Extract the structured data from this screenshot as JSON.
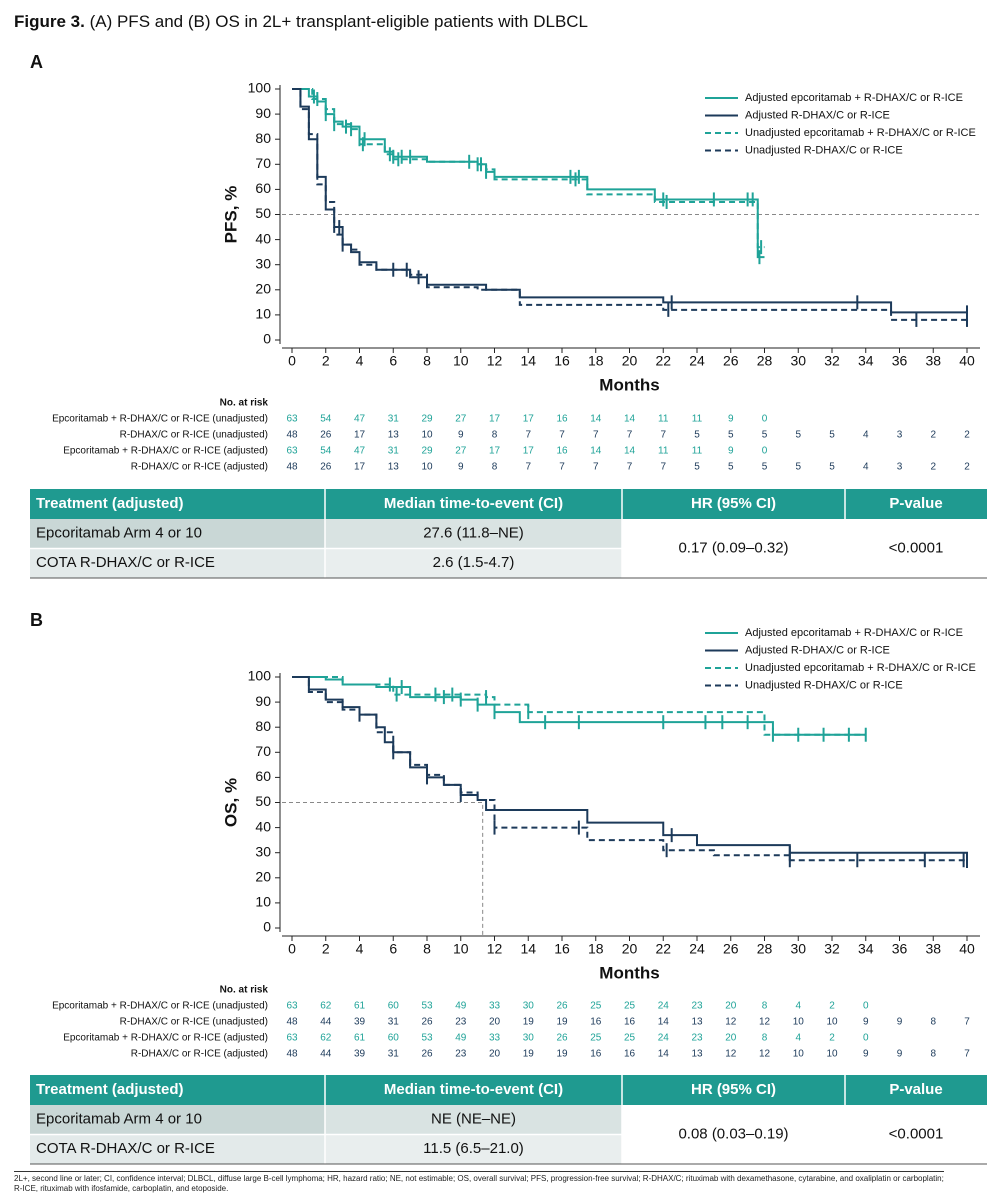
{
  "figure_title": {
    "label": "Figure 3.",
    "text": " (A) PFS and (B) OS in 2L+ transplant-eligible patients with DLBCL"
  },
  "chart_data": [
    {
      "panel": "A",
      "type": "line",
      "step": true,
      "y_label": "PFS, %",
      "x_label": "Months",
      "xlim": [
        0,
        40
      ],
      "ylim": [
        0,
        100
      ],
      "xticks": [
        0,
        2,
        4,
        6,
        8,
        10,
        12,
        14,
        16,
        18,
        20,
        22,
        24,
        26,
        28,
        30,
        32,
        34,
        36,
        38,
        40
      ],
      "yticks": [
        0,
        10,
        20,
        30,
        40,
        50,
        60,
        70,
        80,
        90,
        100
      ],
      "reference_line": 50,
      "series": [
        {
          "name": "Adjusted epcoritamab + R-DHAX/C or R-ICE",
          "color": "#1fa398",
          "dash": false,
          "x": [
            0,
            1,
            1.5,
            2,
            2.5,
            3,
            4,
            5.5,
            6,
            8,
            11,
            11.5,
            12,
            17.5,
            21.5,
            27.6,
            28
          ],
          "values": [
            100,
            97,
            95,
            90,
            87,
            85,
            80,
            75,
            73,
            71,
            70,
            67,
            65,
            60,
            56,
            33,
            33
          ],
          "censored": [
            1.3,
            2,
            3.2,
            4,
            4.3,
            6,
            6.5,
            7,
            10.5,
            11,
            11.5,
            16.5,
            17,
            22,
            25,
            27,
            27.3,
            27.7
          ]
        },
        {
          "name": "Adjusted R-DHAX/C or R-ICE",
          "color": "#1c3a5a",
          "dash": false,
          "x": [
            0,
            0.5,
            1,
            1.5,
            2,
            2.5,
            3,
            3.5,
            4,
            5,
            6,
            7,
            8,
            11.5,
            13.5,
            22,
            35.5,
            40
          ],
          "values": [
            100,
            93,
            80,
            65,
            52,
            45,
            38,
            35,
            31,
            28,
            28,
            25,
            22,
            20,
            17,
            15,
            11,
            11
          ],
          "censored": [
            2.8,
            6,
            7.5,
            22.5,
            33.5,
            40
          ]
        },
        {
          "name": "Unadjusted epcoritamab + R-DHAX/C or R-ICE",
          "color": "#1fa398",
          "dash": true,
          "x": [
            0,
            1.2,
            2,
            2.5,
            3.5,
            4,
            5.5,
            6,
            8,
            11,
            11.5,
            12,
            17.5,
            21.5,
            27.6,
            28
          ],
          "values": [
            100,
            96,
            92,
            86,
            84,
            78,
            74,
            72,
            71,
            70,
            68,
            64,
            58,
            55,
            37,
            37
          ],
          "censored": [
            1.5,
            2.5,
            3.5,
            4.2,
            5.8,
            6.3,
            11.2,
            16.8,
            22.2,
            27.8
          ]
        },
        {
          "name": "Unadjusted R-DHAX/C or R-ICE",
          "color": "#1c3a5a",
          "dash": true,
          "x": [
            0,
            0.5,
            1,
            1.5,
            2,
            2.5,
            3,
            3.5,
            4,
            5,
            7,
            8,
            11,
            13.5,
            22,
            35.5,
            40
          ],
          "values": [
            100,
            92,
            82,
            62,
            55,
            42,
            38,
            36,
            30,
            28,
            26,
            21,
            20,
            14,
            12,
            8,
            8
          ],
          "censored": [
            3,
            6.8,
            22.3,
            37,
            40
          ]
        }
      ],
      "risk_table": {
        "title": "No. at risk",
        "rows": [
          {
            "label": "Epcoritamab + R-DHAX/C or R-ICE (unadjusted)",
            "color": "#1fa398",
            "counts": [
              63,
              54,
              47,
              31,
              29,
              27,
              17,
              17,
              16,
              14,
              14,
              11,
              11,
              9,
              0
            ]
          },
          {
            "label": "R-DHAX/C or R-ICE (unadjusted)",
            "color": "#1c3a5a",
            "counts": [
              48,
              26,
              17,
              13,
              10,
              9,
              8,
              7,
              7,
              7,
              7,
              7,
              5,
              5,
              5,
              5,
              5,
              4,
              3,
              2,
              2
            ]
          },
          {
            "label": "Epcoritamab + R-DHAX/C or R-ICE (adjusted)",
            "color": "#1fa398",
            "counts": [
              63,
              54,
              47,
              31,
              29,
              27,
              17,
              17,
              16,
              14,
              14,
              11,
              11,
              9,
              0
            ]
          },
          {
            "label": "R-DHAX/C or R-ICE (adjusted)",
            "color": "#1c3a5a",
            "counts": [
              48,
              26,
              17,
              13,
              10,
              9,
              8,
              7,
              7,
              7,
              7,
              7,
              5,
              5,
              5,
              5,
              5,
              4,
              3,
              2,
              2
            ]
          }
        ]
      },
      "summary_table": {
        "header": [
          "Treatment (adjusted)",
          "Median time-to-event (CI)",
          "HR (95% CI)",
          "P-value"
        ],
        "rows": [
          [
            "Epcoritamab Arm 4 or 10",
            "27.6 (11.8–NE)"
          ],
          [
            "COTA R-DHAX/C or R-ICE",
            "2.6 (1.5-4.7)"
          ]
        ],
        "hr": "0.17 (0.09–0.32)",
        "p_value": "<0.0001"
      }
    },
    {
      "panel": "B",
      "type": "line",
      "step": true,
      "y_label": "OS, %",
      "x_label": "Months",
      "xlim": [
        0,
        40
      ],
      "ylim": [
        0,
        100
      ],
      "xticks": [
        0,
        2,
        4,
        6,
        8,
        10,
        12,
        14,
        16,
        18,
        20,
        22,
        24,
        26,
        28,
        30,
        32,
        34,
        36,
        38,
        40
      ],
      "yticks": [
        0,
        10,
        20,
        30,
        40,
        50,
        60,
        70,
        80,
        90,
        100
      ],
      "median_line": {
        "x": 11.3,
        "y": 50
      },
      "series": [
        {
          "name": "Adjusted epcoritamab + R-DHAX/C or R-ICE",
          "color": "#1fa398",
          "dash": false,
          "x": [
            0,
            2,
            3,
            5,
            7,
            10,
            11,
            12,
            13.5,
            28,
            28.5,
            34
          ],
          "values": [
            100,
            99,
            97,
            96,
            92,
            91,
            89,
            86,
            82,
            82,
            77,
            77
          ],
          "censored": [
            6.5,
            9,
            10,
            11,
            12,
            15,
            17,
            22,
            24.5,
            25.5,
            27,
            28.5,
            30,
            31.5,
            33,
            34
          ]
        },
        {
          "name": "Adjusted R-DHAX/C or R-ICE",
          "color": "#1c3a5a",
          "dash": false,
          "x": [
            0,
            1,
            2,
            3,
            4,
            5,
            5.5,
            6,
            7,
            8,
            9,
            10,
            11,
            11.5,
            17.5,
            22,
            24,
            29.5,
            40
          ],
          "values": [
            100,
            95,
            91,
            88,
            85,
            80,
            74,
            70,
            64,
            60,
            57,
            53,
            51,
            47,
            42,
            37,
            33,
            30,
            27
          ],
          "censored": [
            4,
            6,
            8,
            10,
            22.5,
            29.5,
            40
          ]
        },
        {
          "name": "Unadjusted epcoritamab + R-DHAX/C or R-ICE",
          "color": "#1fa398",
          "dash": true,
          "x": [
            0,
            3,
            6,
            11.5,
            12,
            14,
            28,
            34
          ],
          "values": [
            100,
            97,
            93,
            92,
            89,
            86,
            77,
            77
          ],
          "censored": [
            5.8,
            6.2,
            8.5,
            9.5,
            11.5,
            14
          ]
        },
        {
          "name": "Unadjusted R-DHAX/C or R-ICE",
          "color": "#1c3a5a",
          "dash": true,
          "x": [
            0,
            1,
            2,
            3,
            4,
            5,
            6,
            7,
            8,
            9,
            10,
            11,
            12,
            17.5,
            22,
            25,
            29.5,
            40
          ],
          "values": [
            100,
            94,
            90,
            87,
            85,
            78,
            70,
            65,
            61,
            57,
            54,
            51,
            40,
            35,
            31,
            29,
            27,
            23
          ],
          "censored": [
            12,
            17,
            22.2,
            29.5,
            33.5,
            37.5,
            39.8
          ]
        }
      ],
      "risk_table": {
        "title": "No. at risk",
        "rows": [
          {
            "label": "Epcoritamab + R-DHAX/C or R-ICE (unadjusted)",
            "color": "#1fa398",
            "counts": [
              63,
              62,
              61,
              60,
              53,
              49,
              33,
              30,
              26,
              25,
              25,
              24,
              23,
              20,
              8,
              4,
              2,
              0
            ]
          },
          {
            "label": "R-DHAX/C or R-ICE (unadjusted)",
            "color": "#1c3a5a",
            "counts": [
              48,
              44,
              39,
              31,
              26,
              23,
              20,
              19,
              19,
              16,
              16,
              14,
              13,
              12,
              12,
              10,
              10,
              9,
              9,
              8,
              7
            ]
          },
          {
            "label": "Epcoritamab + R-DHAX/C or R-ICE (adjusted)",
            "color": "#1fa398",
            "counts": [
              63,
              62,
              61,
              60,
              53,
              49,
              33,
              30,
              26,
              25,
              25,
              24,
              23,
              20,
              8,
              4,
              2,
              0
            ]
          },
          {
            "label": "R-DHAX/C or R-ICE (adjusted)",
            "color": "#1c3a5a",
            "counts": [
              48,
              44,
              39,
              31,
              26,
              23,
              20,
              19,
              19,
              16,
              16,
              14,
              13,
              12,
              12,
              10,
              10,
              9,
              9,
              8,
              7
            ]
          }
        ]
      },
      "summary_table": {
        "header": [
          "Treatment (adjusted)",
          "Median time-to-event (CI)",
          "HR (95% CI)",
          "P-value"
        ],
        "rows": [
          [
            "Epcoritamab Arm 4 or 10",
            "NE (NE–NE)"
          ],
          [
            "COTA R-DHAX/C or R-ICE",
            "11.5 (6.5–21.0)"
          ]
        ],
        "hr": "0.08 (0.03–0.19)",
        "p_value": "<0.0001"
      }
    }
  ],
  "footnote": "2L+, second line or later; CI, confidence interval; DLBCL, diffuse large B-cell lymphoma; HR, hazard ratio; NE, not estimable; OS, overall survival; PFS, progression-free survival; R-DHAX/C; rituximab with dexamethasone, cytarabine, and oxaliplatin or carboplatin; R-ICE, rituximab with ifosfamide, carboplatin, and etoposide."
}
